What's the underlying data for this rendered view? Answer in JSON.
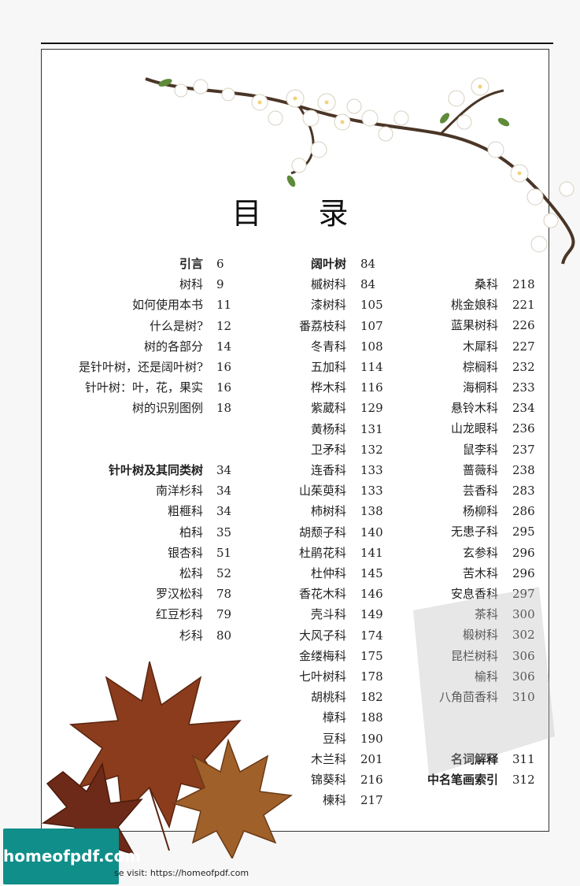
{
  "title": "目 录",
  "col1": [
    {
      "label": "引言",
      "page": "6",
      "bold": true
    },
    {
      "label": "树科",
      "page": "9"
    },
    {
      "label": "如何使用本书",
      "page": "11"
    },
    {
      "label": "什么是树?",
      "page": "12"
    },
    {
      "label": "树的各部分",
      "page": "14"
    },
    {
      "label": "是针叶树，还是阔叶树?",
      "page": "16"
    },
    {
      "label": "针叶树：叶，花，果实",
      "page": "16"
    },
    {
      "label": "树的识别图例",
      "page": "18"
    },
    {
      "label": "针叶树及其同类树",
      "page": "34",
      "bold": true
    },
    {
      "label": "南洋杉科",
      "page": "34"
    },
    {
      "label": "粗榧科",
      "page": "34"
    },
    {
      "label": "柏科",
      "page": "35"
    },
    {
      "label": "银杏科",
      "page": "51"
    },
    {
      "label": "松科",
      "page": "52"
    },
    {
      "label": "罗汉松科",
      "page": "78"
    },
    {
      "label": "红豆杉科",
      "page": "79"
    },
    {
      "label": "杉科",
      "page": "80"
    }
  ],
  "col2": [
    {
      "label": "阔叶树",
      "page": "84",
      "bold": true
    },
    {
      "label": "槭树科",
      "page": "84"
    },
    {
      "label": "漆树科",
      "page": "105"
    },
    {
      "label": "番荔枝科",
      "page": "107"
    },
    {
      "label": "冬青科",
      "page": "108"
    },
    {
      "label": "五加科",
      "page": "114"
    },
    {
      "label": "桦木科",
      "page": "116"
    },
    {
      "label": "紫葳科",
      "page": "129"
    },
    {
      "label": "黄杨科",
      "page": "131"
    },
    {
      "label": "卫矛科",
      "page": "132"
    },
    {
      "label": "连香科",
      "page": "133"
    },
    {
      "label": "山茱萸科",
      "page": "133"
    },
    {
      "label": "柿树科",
      "page": "138"
    },
    {
      "label": "胡颓子科",
      "page": "140"
    },
    {
      "label": "杜鹃花科",
      "page": "141"
    },
    {
      "label": "杜仲科",
      "page": "145"
    },
    {
      "label": "香花木科",
      "page": "146"
    },
    {
      "label": "壳斗科",
      "page": "149"
    },
    {
      "label": "大风子科",
      "page": "174"
    },
    {
      "label": "金缕梅科",
      "page": "175"
    },
    {
      "label": "七叶树科",
      "page": "178"
    },
    {
      "label": "胡桃科",
      "page": "182"
    },
    {
      "label": "樟科",
      "page": "188"
    },
    {
      "label": "豆科",
      "page": "190"
    },
    {
      "label": "木兰科",
      "page": "201"
    },
    {
      "label": "锦葵科",
      "page": "216"
    },
    {
      "label": "楝科",
      "page": "217"
    }
  ],
  "col3": [
    {
      "label": "桑科",
      "page": "218"
    },
    {
      "label": "桃金娘科",
      "page": "221"
    },
    {
      "label": "蓝果树科",
      "page": "226"
    },
    {
      "label": "木犀科",
      "page": "227"
    },
    {
      "label": "棕榈科",
      "page": "232"
    },
    {
      "label": "海桐科",
      "page": "233"
    },
    {
      "label": "悬铃木科",
      "page": "234"
    },
    {
      "label": "山龙眼科",
      "page": "236"
    },
    {
      "label": "鼠李科",
      "page": "237"
    },
    {
      "label": "蔷薇科",
      "page": "238"
    },
    {
      "label": "芸香科",
      "page": "283"
    },
    {
      "label": "杨柳科",
      "page": "286"
    },
    {
      "label": "无患子科",
      "page": "295"
    },
    {
      "label": "玄参科",
      "page": "296"
    },
    {
      "label": "苦木科",
      "page": "296"
    },
    {
      "label": "安息香科",
      "page": "297"
    },
    {
      "label": "茶科",
      "page": "300"
    },
    {
      "label": "椴树科",
      "page": "302"
    },
    {
      "label": "昆栏树科",
      "page": "306"
    },
    {
      "label": "榆科",
      "page": "306"
    },
    {
      "label": "八角茴香科",
      "page": "310"
    },
    {
      "label": "名词解释",
      "page": "311",
      "bold": true
    },
    {
      "label": "中名笔画索引",
      "page": "312",
      "bold": true
    }
  ],
  "logo": "homeofpdf.com",
  "visit": "se visit: https://homeofpdf.com"
}
